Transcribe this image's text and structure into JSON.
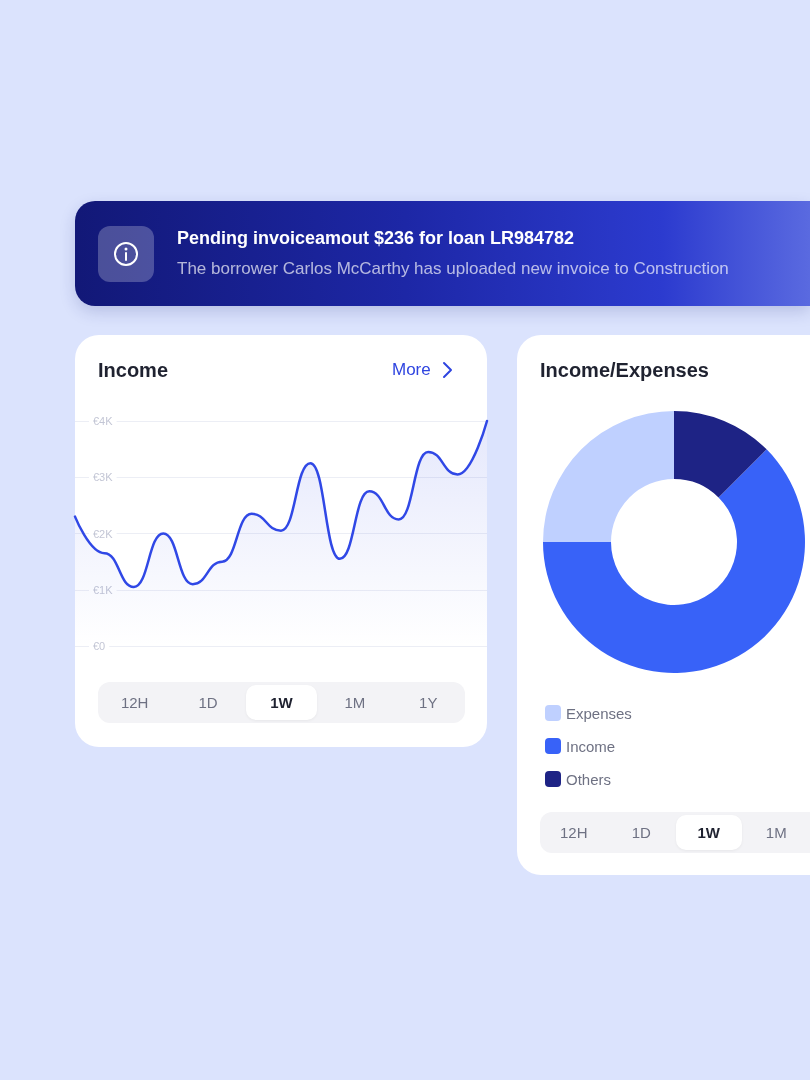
{
  "chart_data": [
    {
      "type": "other",
      "title": "Pending invoiceamout $236 for loan LR984782",
      "subtitle": "The borrower Carlos McCarthy has uploaded new invoice to Construction"
    },
    {
      "type": "area",
      "title": "Income",
      "annotations": [
        "More",
        "12H",
        "1D",
        "1W",
        "1M",
        "1Y"
      ],
      "categories": [
        null,
        null,
        null,
        null,
        null,
        null,
        null,
        null,
        null,
        null,
        null,
        null,
        null,
        null,
        null
      ],
      "values": [
        2300,
        1650,
        1050,
        2000,
        1100,
        1500,
        2350,
        2050,
        3250,
        1550,
        2750,
        2250,
        3450,
        3050,
        4000
      ],
      "color": "#3048e6",
      "ylim": [
        0,
        4000
      ],
      "yticks": [
        {
          "value": 0,
          "label": "€0"
        },
        {
          "value": 1000,
          "label": "€1K"
        },
        {
          "value": 2000,
          "label": "€2K"
        },
        {
          "value": 3000,
          "label": "€3K"
        },
        {
          "value": 4000,
          "label": "€4K"
        }
      ],
      "grid": "y",
      "tick_labels": "y",
      "marker": "none",
      "line_style": "solid"
    },
    {
      "type": "donut",
      "title": "Income/Expenses",
      "categories": [
        "Expenses",
        "Income",
        "Others"
      ],
      "values": [
        25,
        62.5,
        12.5
      ],
      "colors": [
        "#bfd0ff",
        "#3862f8",
        "#1e2385"
      ],
      "legend": "bottom left",
      "annotations": [
        "12H",
        "1D",
        "1W",
        "1M"
      ]
    }
  ]
}
